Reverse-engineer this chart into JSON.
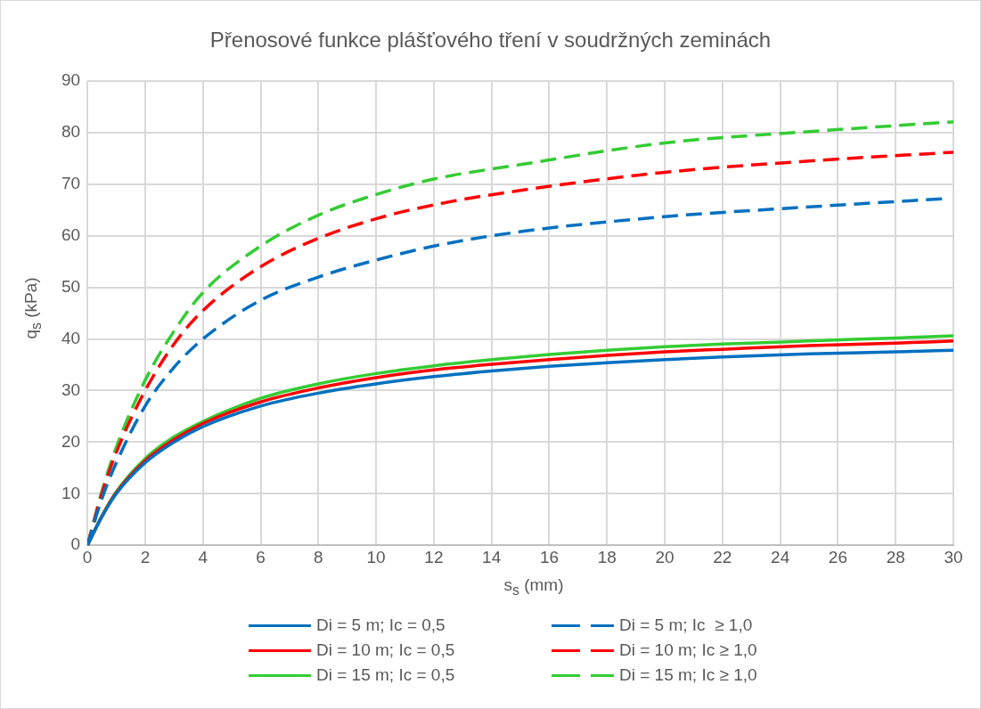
{
  "chart_data": {
    "type": "line",
    "title": "Přenosové funkce plášťového tření v soudržných zeminách",
    "xlabel": "s$_{s}$ (mm)",
    "ylabel": "q$_{s}$ (kPa)",
    "xlim": [
      0,
      30
    ],
    "xticks": [
      0,
      2,
      4,
      6,
      8,
      10,
      12,
      14,
      16,
      18,
      20,
      22,
      24,
      26,
      28,
      30
    ],
    "ylim": [
      0,
      90
    ],
    "yticks": [
      0,
      10,
      20,
      30,
      40,
      50,
      60,
      70,
      80,
      90
    ],
    "grid": true,
    "legend": "bottom",
    "marker": "none",
    "series": [
      {
        "name": "Di = 5 m; Ic = 0,5",
        "color": "#0070c0",
        "line_style": "solid",
        "x": [
          0,
          0.5,
          1,
          2,
          3,
          4,
          6,
          8,
          10,
          12,
          14,
          16,
          18,
          20,
          22,
          25,
          28,
          30
        ],
        "values": [
          0,
          5.5,
          10,
          16,
          20,
          23,
          27,
          29.5,
          31.3,
          32.7,
          33.8,
          34.7,
          35.4,
          36,
          36.5,
          37.1,
          37.5,
          37.8
        ]
      },
      {
        "name": "Di = 5 m; Ic  ≥ 1,0",
        "color": "#0070c0",
        "line_style": "dashed",
        "x": [
          0,
          0.5,
          1,
          2,
          3,
          4,
          6,
          8,
          10,
          12,
          15,
          20,
          25,
          29.7
        ],
        "values": [
          0,
          9,
          16,
          27,
          34.5,
          40,
          47.5,
          52,
          55.3,
          58,
          60.8,
          63.7,
          65.6,
          67.2
        ]
      },
      {
        "name": "Di = 10 m; Ic = 0,5",
        "color": "#ff0000",
        "line_style": "solid",
        "x": [
          0,
          0.5,
          1,
          2,
          3,
          4,
          6,
          8,
          10,
          12,
          14,
          16,
          18,
          20,
          22,
          25,
          28,
          30
        ],
        "values": [
          0,
          5.6,
          10.2,
          16.4,
          20.5,
          23.6,
          27.8,
          30.5,
          32.5,
          34,
          35.1,
          36,
          36.8,
          37.5,
          38,
          38.7,
          39.2,
          39.6
        ]
      },
      {
        "name": "Di = 10 m; Ic ≥ 1,0",
        "color": "#ff0000",
        "line_style": "dashed",
        "x": [
          0,
          0.5,
          1,
          2,
          3,
          4,
          6,
          8,
          10,
          12,
          15,
          20,
          25,
          30
        ],
        "values": [
          0,
          10,
          18,
          30,
          39,
          45.5,
          54,
          59.5,
          63.3,
          66,
          68.8,
          72.3,
          74.5,
          76.2
        ]
      },
      {
        "name": "Di = 15 m; Ic = 0,5",
        "color": "#33cc33",
        "line_style": "solid",
        "x": [
          0,
          0.5,
          1,
          2,
          3,
          4,
          6,
          8,
          10,
          12,
          14,
          16,
          18,
          20,
          22,
          25,
          28,
          30
        ],
        "values": [
          0,
          5.7,
          10.4,
          16.8,
          21,
          24,
          28.5,
          31.3,
          33.3,
          34.8,
          36,
          37,
          37.8,
          38.5,
          39,
          39.6,
          40.2,
          40.6
        ]
      },
      {
        "name": "Di = 15 m; Ic ≥ 1,0",
        "color": "#33cc33",
        "line_style": "dashed",
        "x": [
          0,
          0.5,
          1,
          2,
          3,
          4,
          6,
          8,
          10,
          12,
          15,
          20,
          25,
          30
        ],
        "values": [
          0,
          10.5,
          19,
          32,
          41.5,
          49,
          58,
          64,
          68,
          71,
          73.8,
          78,
          80.2,
          82.1
        ]
      }
    ]
  }
}
